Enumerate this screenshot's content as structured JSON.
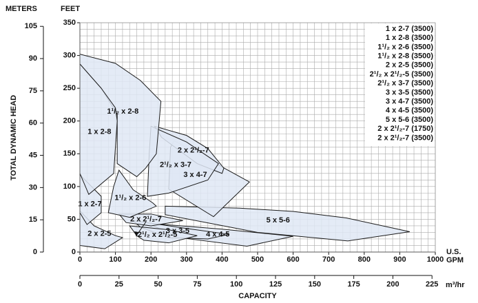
{
  "chart_data": {
    "type": "region",
    "y2_label": "METERS",
    "y_label_unit": "FEET",
    "y_label": "TOTAL DYNAMIC HEAD",
    "x_label_unit": [
      "U.S.",
      "GPM"
    ],
    "x2_label_unit": "m³/hr",
    "x2_label": "CAPACITY",
    "xlim": [
      0,
      1000
    ],
    "xticks": [
      0,
      100,
      200,
      300,
      400,
      500,
      600,
      700,
      800,
      900,
      1000
    ],
    "ylim": [
      0,
      350
    ],
    "yticks": [
      0,
      50,
      100,
      150,
      200,
      250,
      300,
      350
    ],
    "y2lim": [
      0,
      106.68
    ],
    "y2ticks": [
      0,
      15,
      30,
      45,
      60,
      75,
      90,
      105
    ],
    "x2lim": [
      0,
      227.1
    ],
    "x2ticks": [
      0,
      25,
      50,
      75,
      100,
      125,
      150,
      175,
      200,
      225
    ],
    "grid": true,
    "color": "#dfe8f5",
    "edge_color": "#1a1a1a",
    "models": [
      "1 x 2-7 (3500)",
      "1 x 2-8 (3500)",
      "1¹/₂ x 2-6 (3500)",
      "1¹/₂ x 2-8 (3500)",
      "2 x 2-5 (3500)",
      "2¹/₂ x 2¹/₂-5 (3500)",
      "2¹/₂ x 3-7 (3500)",
      "3 x 3-5 (3500)",
      "3 x 4-7 (3500)",
      "4 x 4-5 (3500)",
      "5 x 5-6 (3500)",
      "2 x 2¹/₂-7 (1750)",
      "2 x 2¹/₂-7 (3500)"
    ],
    "series": [
      {
        "name": "5 x 5-6",
        "x": [
          240,
          450,
          600,
          750,
          928,
          754,
          500,
          240
        ],
        "y": [
          70,
          67,
          62,
          52,
          31,
          17,
          30,
          57
        ]
      },
      {
        "name": "4 x 4-5",
        "x": [
          190,
          400,
          600,
          470,
          280
        ],
        "y": [
          44,
          35,
          24,
          9,
          22
        ]
      },
      {
        "name": "3 x 3-5",
        "x": [
          150,
          300,
          420,
          360,
          250,
          170
        ],
        "y": [
          48,
          36,
          27,
          20,
          22,
          38
        ]
      },
      {
        "name": "2¹/₂ x 2¹/₂-5",
        "x": [
          140,
          250,
          330,
          250,
          180,
          160
        ],
        "y": [
          40,
          34,
          25,
          14,
          18,
          25
        ]
      },
      {
        "name": "2 x 2-5",
        "x": [
          0,
          40,
          100,
          120,
          70,
          0
        ],
        "y": [
          63,
          40,
          25,
          22,
          5,
          10
        ]
      },
      {
        "name": "2 x 2¹/₂-7",
        "x": [
          110,
          200,
          290,
          200,
          130
        ],
        "y": [
          58,
          58,
          48,
          40,
          45
        ]
      },
      {
        "name": "1 x 2-7",
        "x": [
          0,
          60,
          60,
          20,
          0
        ],
        "y": [
          118,
          85,
          60,
          42,
          60
        ]
      },
      {
        "name": "1¹/₂ x 2-6",
        "x": [
          110,
          150,
          205,
          215,
          140,
          80,
          95
        ],
        "y": [
          125,
          95,
          75,
          70,
          53,
          60,
          100
        ]
      },
      {
        "name": "3 x 4-7",
        "x": [
          265,
          477,
          376,
          250,
          255
        ],
        "y": [
          170,
          107,
          54,
          96,
          160
        ]
      },
      {
        "name": "2 x 2¹/₂-7",
        "x": [
          210,
          300,
          360,
          405,
          400,
          330,
          230
        ],
        "y": [
          192,
          178,
          158,
          128,
          120,
          135,
          175
        ]
      },
      {
        "name": "2¹/₂ x 3-7",
        "x": [
          200,
          300,
          390,
          360,
          250,
          190,
          195
        ],
        "y": [
          192,
          168,
          135,
          110,
          90,
          85,
          150
        ]
      },
      {
        "name": "1¹/₂ x 2-8",
        "x": [
          0,
          100,
          170,
          228,
          215,
          185,
          160,
          105,
          105,
          60,
          0
        ],
        "y": [
          302,
          288,
          262,
          230,
          150,
          128,
          115,
          135,
          210,
          250,
          287
        ]
      },
      {
        "name": "1 x 2-8",
        "x": [
          0,
          60,
          100,
          105,
          95,
          25,
          0
        ],
        "y": [
          287,
          250,
          220,
          200,
          120,
          88,
          120
        ]
      }
    ]
  }
}
